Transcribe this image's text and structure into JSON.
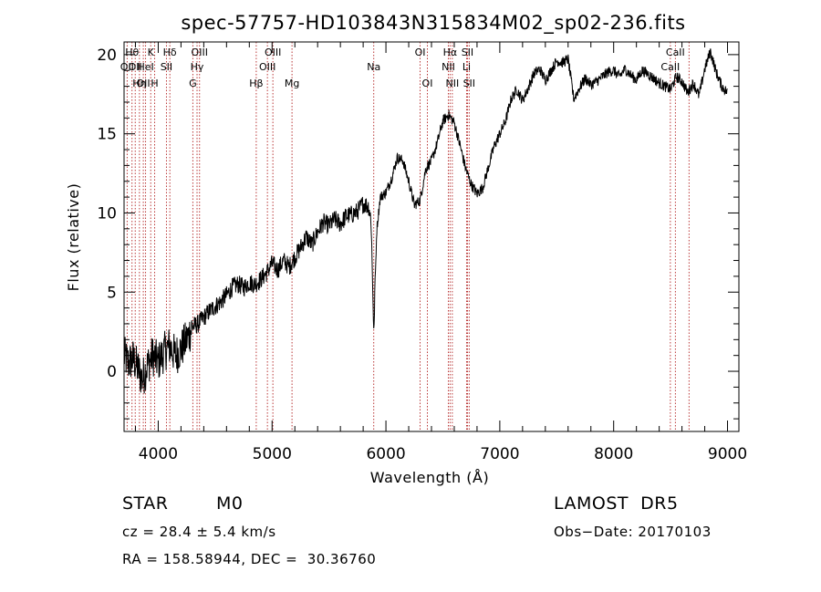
{
  "chart_data": {
    "type": "line",
    "title": "spec-57757-HD103843N315834M02_sp02-236.fits",
    "xlabel": "Wavelength (Å)",
    "ylabel": "Flux (relative)",
    "xlim": [
      3700,
      9100
    ],
    "ylim": [
      -3.8,
      20.8
    ],
    "xticks": [
      4000,
      5000,
      6000,
      7000,
      8000,
      9000
    ],
    "yticks": [
      0,
      5,
      10,
      15,
      20
    ],
    "grid": false,
    "series": [
      {
        "style": "solid black",
        "x": [
          3700,
          3740,
          3780,
          3820,
          3860,
          3900,
          3950,
          4000,
          4050,
          4100,
          4150,
          4200,
          4250,
          4300,
          4350,
          4400,
          4450,
          4500,
          4550,
          4600,
          4650,
          4700,
          4750,
          4800,
          4850,
          4900,
          4950,
          5000,
          5050,
          5100,
          5150,
          5200,
          5250,
          5300,
          5350,
          5400,
          5450,
          5500,
          5550,
          5600,
          5650,
          5700,
          5750,
          5800,
          5850,
          5870,
          5890,
          5895,
          5900,
          5920,
          5950,
          6000,
          6050,
          6100,
          6150,
          6200,
          6250,
          6300,
          6350,
          6400,
          6450,
          6500,
          6550,
          6600,
          6650,
          6700,
          6750,
          6800,
          6850,
          6900,
          6950,
          7000,
          7050,
          7100,
          7150,
          7200,
          7250,
          7300,
          7350,
          7400,
          7450,
          7500,
          7550,
          7600,
          7650,
          7700,
          7750,
          7800,
          7850,
          7900,
          7950,
          8000,
          8050,
          8100,
          8150,
          8200,
          8250,
          8300,
          8350,
          8400,
          8450,
          8500,
          8550,
          8600,
          8650,
          8700,
          8750,
          8800,
          8850,
          8900,
          8950,
          9000
        ],
        "y": [
          1.0,
          0.5,
          0.8,
          0.2,
          -0.5,
          0.3,
          1.0,
          0.6,
          1.2,
          1.6,
          1.0,
          1.4,
          2.0,
          2.8,
          3.0,
          3.4,
          3.8,
          4.1,
          4.4,
          4.8,
          5.3,
          5.5,
          5.3,
          5.6,
          5.5,
          5.8,
          6.2,
          6.8,
          6.4,
          7.0,
          6.6,
          7.2,
          7.8,
          8.5,
          8.0,
          8.8,
          9.4,
          9.2,
          9.6,
          9.3,
          9.8,
          9.9,
          10.1,
          10.6,
          10.4,
          9.5,
          3.5,
          2.0,
          4.5,
          9.0,
          11.0,
          11.3,
          12.2,
          13.5,
          13.3,
          12.0,
          10.5,
          10.8,
          12.8,
          13.3,
          14.4,
          15.8,
          16.2,
          15.7,
          14.3,
          12.8,
          11.8,
          11.2,
          11.6,
          12.9,
          14.2,
          15.0,
          15.8,
          17.2,
          17.8,
          17.1,
          17.9,
          18.8,
          19.1,
          18.4,
          19.0,
          19.6,
          19.5,
          19.7,
          17.2,
          17.9,
          18.5,
          18.1,
          18.3,
          18.6,
          18.9,
          19.0,
          18.6,
          19.1,
          18.7,
          18.4,
          19.0,
          18.8,
          18.5,
          18.2,
          18.0,
          17.8,
          18.6,
          18.3,
          17.6,
          18.2,
          17.4,
          19.1,
          20.2,
          18.9,
          18.0,
          17.6
        ]
      }
    ],
    "line_markers": [
      {
        "wavelength": 3727,
        "label": "OII",
        "row": 2
      },
      {
        "wavelength": 3770,
        "label": "Hθ",
        "row": 1
      },
      {
        "wavelength": 3798,
        "label": "OII",
        "row": 2
      },
      {
        "wavelength": 3835,
        "label": "Hη",
        "row": 3
      },
      {
        "wavelength": 3869,
        "label": "OII",
        "row": 3
      },
      {
        "wavelength": 3889,
        "label": "HeI",
        "row": 2
      },
      {
        "wavelength": 3934,
        "label": "K",
        "row": 1
      },
      {
        "wavelength": 3969,
        "label": "H",
        "row": 3
      },
      {
        "wavelength": 4072,
        "label": "SII",
        "row": 2
      },
      {
        "wavelength": 4102,
        "label": "Hδ",
        "row": 1
      },
      {
        "wavelength": 4304,
        "label": "G",
        "row": 3
      },
      {
        "wavelength": 4341,
        "label": "Hγ",
        "row": 2
      },
      {
        "wavelength": 4363,
        "label": "OIII",
        "row": 1
      },
      {
        "wavelength": 4861,
        "label": "Hβ",
        "row": 3
      },
      {
        "wavelength": 4959,
        "label": "OIII",
        "row": 2
      },
      {
        "wavelength": 5007,
        "label": "OIII",
        "row": 1
      },
      {
        "wavelength": 5175,
        "label": "Mg",
        "row": 3
      },
      {
        "wavelength": 5893,
        "label": "Na",
        "row": 2
      },
      {
        "wavelength": 6300,
        "label": "OI",
        "row": 1
      },
      {
        "wavelength": 6364,
        "label": "OI",
        "row": 3
      },
      {
        "wavelength": 6548,
        "label": "NII",
        "row": 2
      },
      {
        "wavelength": 6563,
        "label": "Hα",
        "row": 1
      },
      {
        "wavelength": 6583,
        "label": "NII",
        "row": 3
      },
      {
        "wavelength": 6708,
        "label": "Li",
        "row": 2
      },
      {
        "wavelength": 6716,
        "label": "SII",
        "row": 1
      },
      {
        "wavelength": 6731,
        "label": "SII",
        "row": 3
      },
      {
        "wavelength": 8498,
        "label": "CaII",
        "row": 2
      },
      {
        "wavelength": 8542,
        "label": "CaII",
        "row": 1
      },
      {
        "wavelength": 8662,
        "label": "",
        "row": 0
      }
    ],
    "marker_color": "#b22222"
  },
  "info": {
    "object_class": "STAR",
    "subclass": "M0",
    "survey": "LAMOST  DR5",
    "redshift": "cz = 28.4 ± 5.4 km/s",
    "obs_date": "Obs−Date: 20170103",
    "coords": "RA = 158.58944, DEC =  30.36760"
  }
}
